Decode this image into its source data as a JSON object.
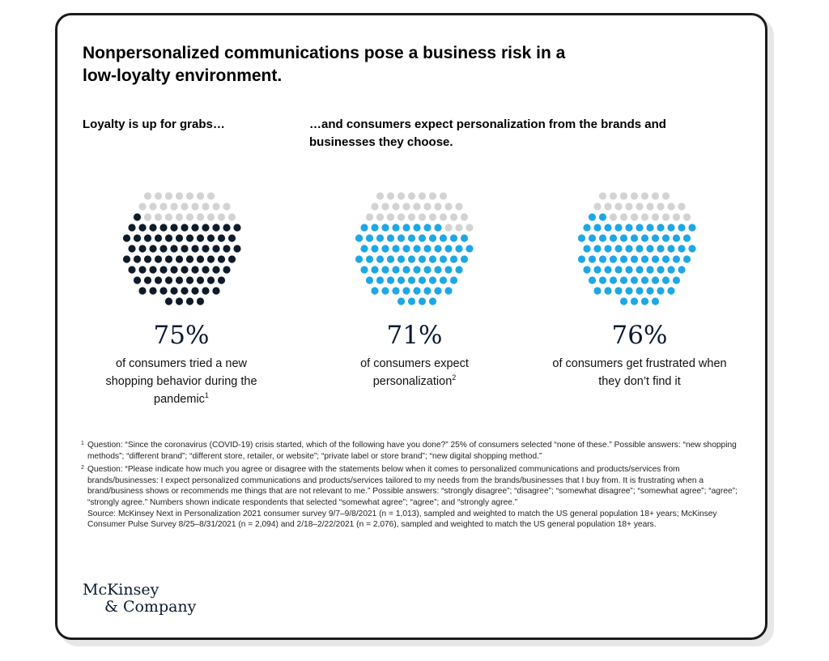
{
  "title": "Nonpersonalized communications pose a business risk in a low-loyalty environment.",
  "subtitle_left": "Loyalty is up for grabs…",
  "subtitle_right": "…and consumers expect personalization from the brands and businesses they choose.",
  "chart_data": {
    "type": "dot-matrix",
    "items": [
      {
        "value": 75,
        "label": "75%",
        "desc": "of consumers tried a new shopping behavior during the pandemic",
        "footnote": "1",
        "color": "#0d1b2a"
      },
      {
        "value": 71,
        "label": "71%",
        "desc": "of consumers expect personalization",
        "footnote": "2",
        "color": "#1ea7e4"
      },
      {
        "value": 76,
        "label": "76%",
        "desc": "of consumers get frustrated when they don’t find it",
        "footnote": "",
        "color": "#1ea7e4"
      }
    ],
    "empty_color": "#d3d3d3"
  },
  "footnotes": {
    "n1_mark": "1",
    "n1": "Question: “Since the coronavirus (COVID-19) crisis started, which of the following have you done?” 25% of consumers selected “none of these.” Possible answers: “new shopping methods”; “different brand”; “different store, retailer, or website”; “private label or store brand”; “new digital shopping method.”",
    "n2_mark": "2",
    "n2": "Question: “Please indicate how much you agree or disagree with the statements below when it comes to personalized communications and products/services from brands/businesses: I expect personalized communications and products/services tailored to my needs from the brands/businesses that I buy from. It is frustrating when a brand/business shows or recommends me things that are not relevant to me.” Possible answers: “strongly disagree”; “disagree”; “somewhat disagree”; “somewhat agree”; “agree”; “strongly agree.” Numbers shown indicate respondents that selected “somewhat agree”; “agree”; and “strongly agree.”",
    "source": "Source: McKinsey Next in Personalization 2021 consumer survey 9/7–9/8/2021 (n = 1,013), sampled and weighted to match the US general population 18+ years; McKinsey Consumer Pulse Survey 8/25–8/31/2021 (n = 2,094) and 2/18–2/22/2021 (n = 2,076), sampled and weighted to match the US general population 18+ years."
  },
  "logo": {
    "line1": "McKinsey",
    "line2": "& Company"
  }
}
